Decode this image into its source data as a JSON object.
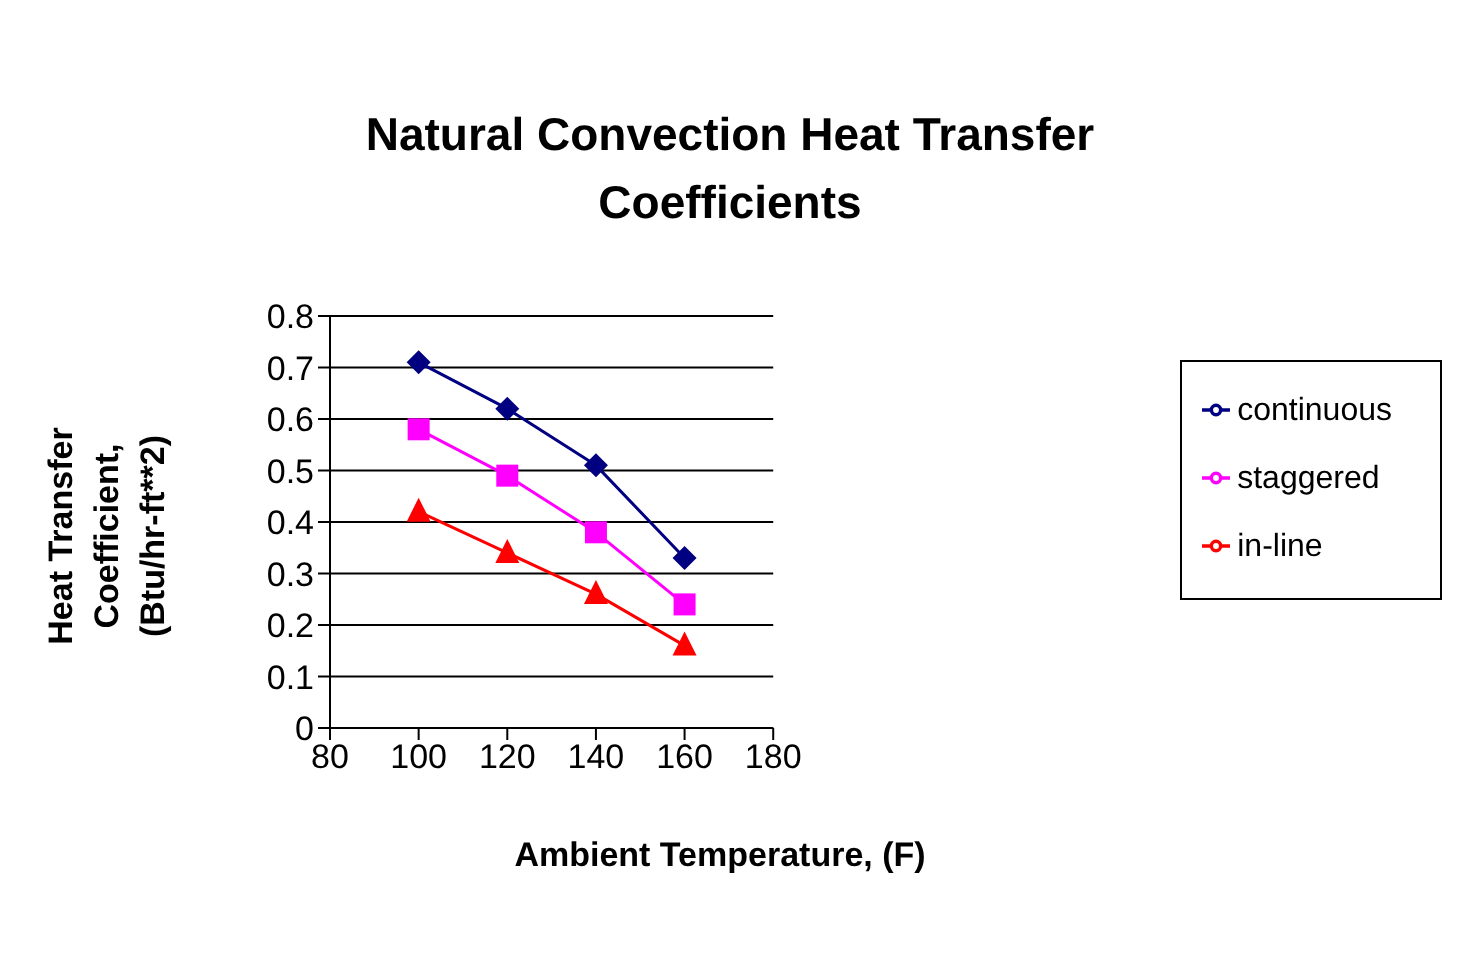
{
  "chart_data": {
    "type": "line",
    "title": "Natural Convection Heat Transfer Coefficients",
    "xlabel": "Ambient Temperature, (F)",
    "ylabel": "Heat Transfer Coefficient, (Btu/hr-ft**2)",
    "x": [
      100,
      120,
      140,
      160
    ],
    "series": [
      {
        "name": "continuous",
        "color": "#000080",
        "marker": "diamond",
        "values": [
          0.71,
          0.62,
          0.51,
          0.33
        ]
      },
      {
        "name": "staggered",
        "color": "#ff00ff",
        "marker": "square",
        "values": [
          0.58,
          0.49,
          0.38,
          0.24
        ]
      },
      {
        "name": "in-line",
        "color": "#ff0000",
        "marker": "triangle",
        "values": [
          0.42,
          0.34,
          0.26,
          0.16
        ]
      }
    ],
    "xlim": [
      80,
      180
    ],
    "xticks": [
      80,
      100,
      120,
      140,
      160,
      180
    ],
    "ylim": [
      0,
      0.8
    ],
    "yticks": [
      0,
      0.1,
      0.2,
      0.3,
      0.4,
      0.5,
      0.6,
      0.7,
      0.8
    ],
    "grid": "y",
    "legend": "right",
    "line_style": "solid"
  }
}
